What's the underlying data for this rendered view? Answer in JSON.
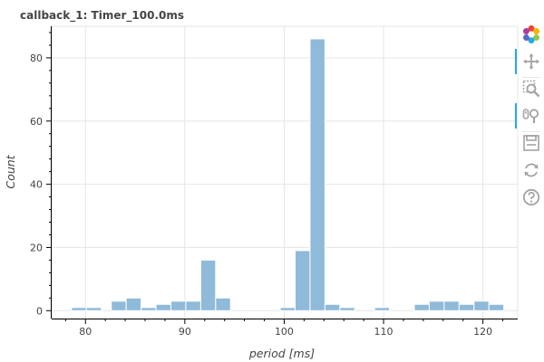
{
  "chart_data": {
    "type": "bar",
    "title": "callback_1: Timer_100.0ms",
    "xlabel": "period [ms]",
    "ylabel": "Count",
    "xlim": [
      76.6,
      123.5
    ],
    "ylim": [
      -2.5,
      90
    ],
    "xticks": [
      80,
      90,
      100,
      110,
      120
    ],
    "yticks": [
      0,
      20,
      40,
      60,
      80
    ],
    "grid": true,
    "bar_color": "#8fbad9",
    "bins": [
      {
        "x0": 78.6,
        "x1": 80.1,
        "count": 1
      },
      {
        "x0": 80.1,
        "x1": 81.6,
        "count": 1
      },
      {
        "x0": 82.6,
        "x1": 84.1,
        "count": 3
      },
      {
        "x0": 84.1,
        "x1": 85.6,
        "count": 4
      },
      {
        "x0": 85.6,
        "x1": 87.1,
        "count": 1
      },
      {
        "x0": 87.1,
        "x1": 88.6,
        "count": 2
      },
      {
        "x0": 88.6,
        "x1": 90.1,
        "count": 3
      },
      {
        "x0": 90.1,
        "x1": 91.6,
        "count": 3
      },
      {
        "x0": 91.6,
        "x1": 93.1,
        "count": 16
      },
      {
        "x0": 93.1,
        "x1": 94.6,
        "count": 4
      },
      {
        "x0": 99.6,
        "x1": 101.1,
        "count": 1
      },
      {
        "x0": 101.1,
        "x1": 102.6,
        "count": 19
      },
      {
        "x0": 102.6,
        "x1": 104.1,
        "count": 86
      },
      {
        "x0": 104.1,
        "x1": 105.6,
        "count": 2
      },
      {
        "x0": 105.6,
        "x1": 107.1,
        "count": 1
      },
      {
        "x0": 109.1,
        "x1": 110.6,
        "count": 1
      },
      {
        "x0": 113.1,
        "x1": 114.6,
        "count": 2
      },
      {
        "x0": 114.6,
        "x1": 116.1,
        "count": 3
      },
      {
        "x0": 116.1,
        "x1": 117.6,
        "count": 3
      },
      {
        "x0": 117.6,
        "x1": 119.1,
        "count": 2
      },
      {
        "x0": 119.1,
        "x1": 120.6,
        "count": 3
      },
      {
        "x0": 120.6,
        "x1": 122.1,
        "count": 2
      }
    ]
  },
  "toolbar": {
    "tools": [
      {
        "name": "bokeh-logo-icon",
        "interactable": true,
        "active": false
      },
      {
        "name": "pan-tool-icon",
        "interactable": true,
        "active": true
      },
      {
        "name": "box-zoom-tool-icon",
        "interactable": true,
        "active": false
      },
      {
        "name": "wheel-zoom-tool-icon",
        "interactable": true,
        "active": true
      },
      {
        "name": "save-tool-icon",
        "interactable": true,
        "active": false
      },
      {
        "name": "reset-tool-icon",
        "interactable": true,
        "active": false
      },
      {
        "name": "help-tool-icon",
        "interactable": true,
        "active": false
      }
    ]
  }
}
